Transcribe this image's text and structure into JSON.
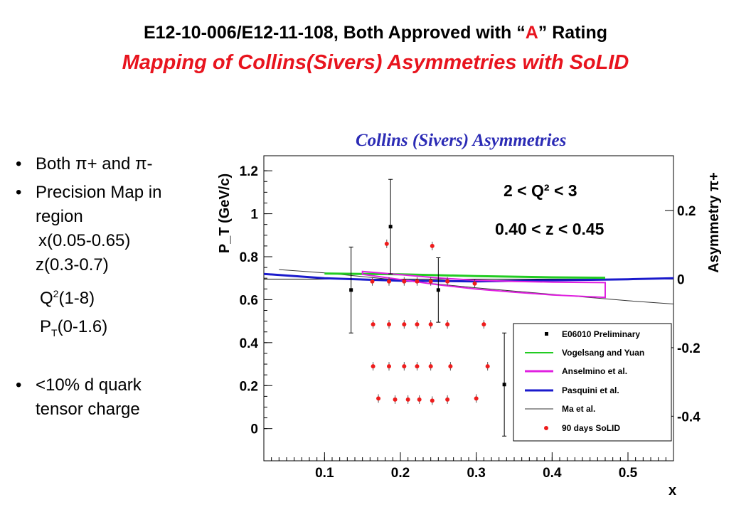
{
  "header": {
    "line1_prefix": "E12-10-006/E12-11-108, Both Approved with “",
    "line1_accent": "A",
    "line1_suffix": "” Rating",
    "line2": "Mapping of Collins(Sivers) Asymmetries with SoLID"
  },
  "bullets": {
    "b1": "Both π+ and π-",
    "b2a": "Precision Map in",
    "b2b": "region",
    "r1": "x(0.05-0.65)",
    "r2": "z(0.3-0.7)",
    "r3a": "Q",
    "r3sup": "2",
    "r3b": "(1-8)",
    "r4a": "P",
    "r4sub": "T",
    "r4b": "(0-1.6)",
    "b3a": "<10% d quark",
    "b3b": "tensor charge"
  },
  "chart_data": {
    "type": "scatter",
    "title": "Collins  (Sivers) Asymmetries",
    "xlabel": "x",
    "ylabel": "P_T (GeV/c)",
    "ylabel_right": "Asymmetry π+",
    "xlim": [
      0.02,
      0.56
    ],
    "ylim": [
      -0.15,
      1.27
    ],
    "right_ylim": [
      -0.53,
      0.36
    ],
    "x_ticks": [
      "0.1",
      "0.2",
      "0.3",
      "0.4",
      "0.5"
    ],
    "y_ticks": [
      "0",
      "0.2",
      "0.4",
      "0.6",
      "0.8",
      "1",
      "1.2"
    ],
    "right_ticks": [
      "0.2",
      "0",
      "-0.2",
      "-0.4"
    ],
    "annotations": [
      "2 < Q² < 3",
      "0.40 < z < 0.45"
    ],
    "series": [
      {
        "name": "E06010 Preliminary",
        "color": "#000000",
        "marker": "square",
        "x": [
          0.135,
          0.187,
          0.25,
          0.337
        ],
        "y": [
          0.645,
          0.94,
          0.645,
          0.205
        ],
        "err": [
          0.2,
          0.22,
          0.15,
          0.24
        ]
      },
      {
        "name": "Vogelsang and Yuan",
        "color": "#22cc22",
        "style": "line",
        "x": [
          0.1,
          0.2,
          0.3,
          0.4,
          0.47
        ],
        "y": [
          0.722,
          0.718,
          0.71,
          0.704,
          0.702
        ]
      },
      {
        "name": "Anselmino et al.",
        "color": "#e020e0",
        "style": "band",
        "x": [
          0.15,
          0.2,
          0.25,
          0.3,
          0.35,
          0.4,
          0.47
        ],
        "y": [
          0.725,
          0.705,
          0.685,
          0.67,
          0.66,
          0.652,
          0.645
        ]
      },
      {
        "name": "Pasquini et al.",
        "color": "#1a1acc",
        "style": "line",
        "x": [
          0.02,
          0.1,
          0.2,
          0.3,
          0.4,
          0.5,
          0.56
        ],
        "y": [
          0.72,
          0.7,
          0.688,
          0.685,
          0.69,
          0.695,
          0.7
        ]
      },
      {
        "name": "Ma et al.",
        "color": "#333333",
        "style": "line",
        "x": [
          0.04,
          0.1,
          0.2,
          0.3,
          0.4,
          0.5,
          0.56
        ],
        "y": [
          0.74,
          0.725,
          0.69,
          0.655,
          0.625,
          0.595,
          0.58
        ]
      },
      {
        "name": "90 days SoLID",
        "color": "#ee1c1c",
        "marker": "circle",
        "points": [
          [
            0.163,
            0.685
          ],
          [
            0.185,
            0.685
          ],
          [
            0.205,
            0.685
          ],
          [
            0.222,
            0.685
          ],
          [
            0.24,
            0.685
          ],
          [
            0.262,
            0.685
          ],
          [
            0.298,
            0.675
          ],
          [
            0.182,
            0.86
          ],
          [
            0.242,
            0.85
          ],
          [
            0.164,
            0.485
          ],
          [
            0.185,
            0.485
          ],
          [
            0.205,
            0.485
          ],
          [
            0.222,
            0.485
          ],
          [
            0.24,
            0.485
          ],
          [
            0.262,
            0.485
          ],
          [
            0.31,
            0.485
          ],
          [
            0.164,
            0.29
          ],
          [
            0.185,
            0.29
          ],
          [
            0.205,
            0.29
          ],
          [
            0.222,
            0.29
          ],
          [
            0.24,
            0.29
          ],
          [
            0.266,
            0.29
          ],
          [
            0.315,
            0.29
          ],
          [
            0.171,
            0.14
          ],
          [
            0.193,
            0.135
          ],
          [
            0.21,
            0.135
          ],
          [
            0.225,
            0.135
          ],
          [
            0.242,
            0.13
          ],
          [
            0.262,
            0.135
          ],
          [
            0.3,
            0.14
          ]
        ]
      }
    ]
  }
}
